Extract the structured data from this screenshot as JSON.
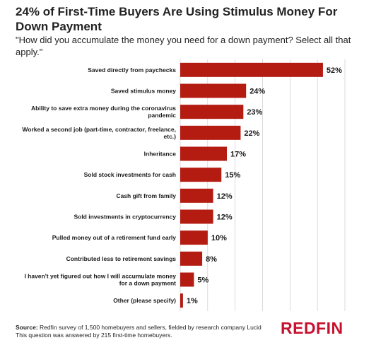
{
  "title": "24% of First-Time Buyers Are Using Stimulus Money For Down Payment",
  "subtitle": "\"How did you accumulate the money you need for a down payment? Select all that apply.\"",
  "footer": {
    "source_label": "Source:",
    "source_text": " Redfin survey of 1,500 homebuyers and sellers, fielded by research company Lucid",
    "note": "This question was answered by 215 first-time homebuyers."
  },
  "logo": "REDFIN",
  "colors": {
    "bar": "#b41c12",
    "grid": "#cccccc",
    "logo": "#c8102e"
  },
  "chart_data": {
    "type": "bar",
    "orientation": "horizontal",
    "categories": [
      [
        "Saved directly from paychecks"
      ],
      [
        "Saved stimulus money"
      ],
      [
        "Ability to save extra money during the coronavirus",
        "pandemic"
      ],
      [
        "Worked a second job (part-time, contractor, freelance,",
        "etc.)"
      ],
      [
        "Inheritance"
      ],
      [
        "Sold stock investments for cash"
      ],
      [
        "Cash gift from family"
      ],
      [
        "Sold investments in cryptocurrency"
      ],
      [
        "Pulled money out of a retirement fund early"
      ],
      [
        "Contributed less to retirement savings"
      ],
      [
        "I haven't yet figured out how I will accumulate money",
        "for a down payment"
      ],
      [
        "Other (please specify)"
      ]
    ],
    "values": [
      52,
      24,
      23,
      22,
      17,
      15,
      12,
      12,
      10,
      8,
      5,
      1
    ],
    "value_labels": [
      "52%",
      "24%",
      "23%",
      "22%",
      "17%",
      "15%",
      "12%",
      "12%",
      "10%",
      "8%",
      "5%",
      "1%"
    ],
    "xlim": [
      0,
      60
    ],
    "grid": true
  }
}
